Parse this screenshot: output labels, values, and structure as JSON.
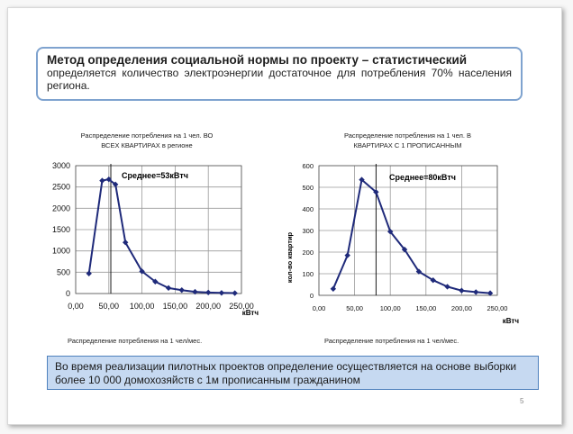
{
  "header": {
    "title": "Метод определения социальной нормы по проекту – статистический",
    "description": "определяется количество электроэнергии достаточное для потребления 70% населения региона."
  },
  "footer_note": "Во время реализации пилотных проектов определение осуществляется на основе выборки более 10 000 домохозяйств с 1м прописанным гражданином",
  "page_number": "5",
  "chart_data": [
    {
      "type": "line",
      "title": "Распределение потребления на 1 чел. ВО ВСЕХ КВАРТИРАХ в регионе",
      "title_lines": [
        "Распределение потребления на 1 чел. ВО",
        "ВСЕХ КВАРТИРАХ в регионе"
      ],
      "xlabel": "кВтч",
      "ylabel": "",
      "caption": "Распределение потребления на 1 чел/мес.",
      "annotation": "Среднее=53кВтч",
      "mean_x": 53,
      "xlim": [
        0,
        250
      ],
      "ylim": [
        0,
        3000
      ],
      "x_ticks": [
        "0,00",
        "50,00",
        "100,00",
        "150,00",
        "200,00",
        "250,00"
      ],
      "y_ticks": [
        "0",
        "500",
        "1000",
        "1500",
        "2000",
        "2500",
        "3000"
      ],
      "grid": true,
      "series_color": "#1f2a7a",
      "x": [
        20,
        40,
        50,
        60,
        75,
        100,
        120,
        140,
        160,
        180,
        200,
        220,
        240
      ],
      "y": [
        470,
        2650,
        2680,
        2560,
        1200,
        520,
        280,
        130,
        80,
        40,
        25,
        15,
        10
      ]
    },
    {
      "type": "line",
      "title": "Распределение потребления на 1 чел. В КВАРТИРАХ С 1 ПРОПИСАННЫМ",
      "title_lines": [
        "Распределение потребления на 1 чел. В",
        "КВАРТИРАХ С 1 ПРОПИСАННЫМ"
      ],
      "xlabel": "кВтч",
      "ylabel": "кол-во квартир",
      "caption": "Распределение потребления на 1 чел/мес.",
      "annotation": "Среднее=80кВтч",
      "mean_x": 80,
      "xlim": [
        0,
        250
      ],
      "ylim": [
        0,
        600
      ],
      "x_ticks": [
        "0,00",
        "50,00",
        "100,00",
        "150,00",
        "200,00",
        "250,00"
      ],
      "y_ticks": [
        "0",
        "100",
        "200",
        "300",
        "400",
        "500",
        "600"
      ],
      "grid": true,
      "series_color": "#1f2a7a",
      "x": [
        20,
        40,
        60,
        80,
        100,
        120,
        140,
        160,
        180,
        200,
        220,
        240
      ],
      "y": [
        30,
        185,
        535,
        478,
        295,
        212,
        110,
        70,
        40,
        22,
        15,
        10
      ]
    }
  ]
}
